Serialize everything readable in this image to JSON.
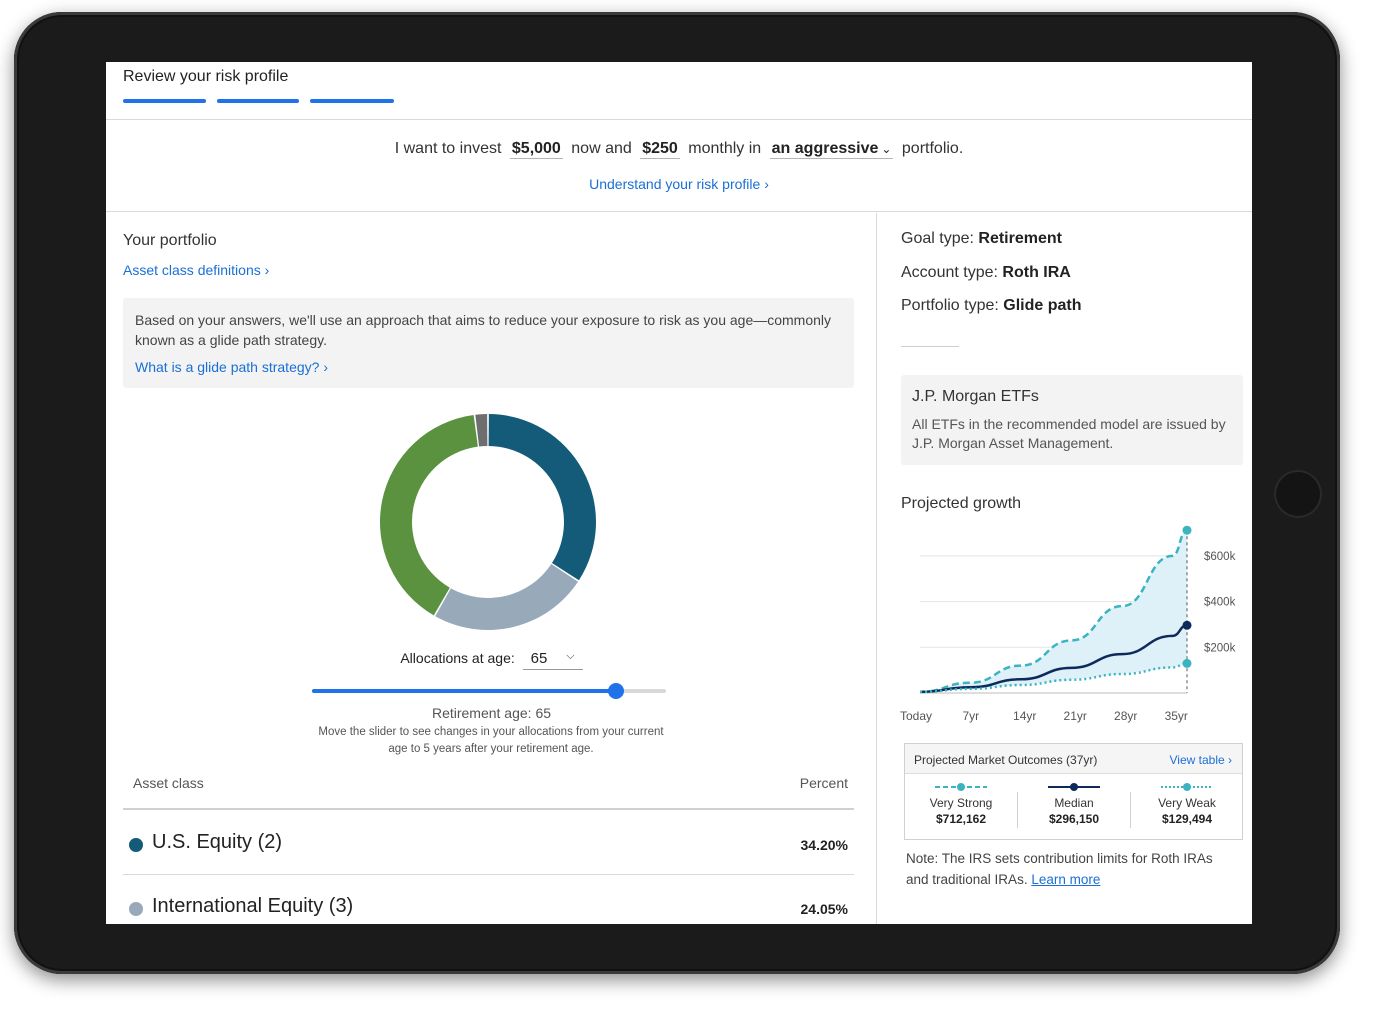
{
  "header": {
    "title": "Review your risk profile",
    "steps_total": 3,
    "steps_complete": 3
  },
  "invest": {
    "prefix": "I want to invest",
    "initial_amount": "$5,000",
    "middle": "now and",
    "monthly_amount": "$250",
    "monthly_label": "monthly in",
    "risk_level": "an aggressive",
    "suffix": "portfolio.",
    "risk_link": "Understand your risk profile ›"
  },
  "portfolio": {
    "title": "Your portfolio",
    "asset_def_link": "Asset class definitions ›",
    "info_text": "Based on your answers, we'll use an approach that aims to reduce your exposure to risk as you age—commonly known as a glide path strategy.",
    "info_link": "What is a glide path strategy? ›",
    "allocation_label": "Allocations at age:",
    "allocation_age": "65",
    "slider_fraction": 0.86,
    "retirement_age_text": "Retirement age: 65",
    "slider_help": "Move the slider to see changes in your allocations from your current age to 5 years after your retirement age.",
    "table": {
      "col_asset": "Asset class",
      "col_percent": "Percent",
      "rows": [
        {
          "name": "U.S. Equity (2)",
          "percent": "34.20%",
          "color": "#135b78"
        },
        {
          "name": "International Equity (3)",
          "percent": "24.05%",
          "color": "#98a9ba"
        }
      ]
    },
    "donut_slices": [
      {
        "label": "U.S. Equity",
        "value": 34.2,
        "color": "#135b78"
      },
      {
        "label": "International Equity",
        "value": 24.05,
        "color": "#98a9ba"
      },
      {
        "label": "Other (green)",
        "value": 39.75,
        "color": "#5a9240"
      },
      {
        "label": "Other (gray)",
        "value": 2.0,
        "color": "#6e6e6e"
      }
    ]
  },
  "goal": {
    "goal_type_label": "Goal type:",
    "goal_type": "Retirement",
    "account_type_label": "Account type:",
    "account_type": "Roth IRA",
    "portfolio_type_label": "Portfolio type:",
    "portfolio_type": "Glide path"
  },
  "etf": {
    "title": "J.P. Morgan ETFs",
    "text": "All ETFs in the recommended model are issued by J.P. Morgan Asset Management."
  },
  "growth": {
    "title": "Projected growth"
  },
  "chart_data": {
    "type": "line",
    "x": [
      0,
      7,
      14,
      21,
      28,
      35,
      37
    ],
    "x_tick_labels": [
      "Today",
      "7yr",
      "14yr",
      "21yr",
      "28yr",
      "35yr"
    ],
    "y_tick_labels": [
      "$200k",
      "$400k",
      "$600k"
    ],
    "ylim": [
      0,
      700000
    ],
    "series": [
      {
        "name": "Very Strong",
        "style": "dashed",
        "color": "#3bb4c1",
        "values": [
          5000,
          45000,
          120000,
          230000,
          380000,
          600000,
          712162
        ]
      },
      {
        "name": "Median",
        "style": "solid",
        "color": "#0e2a5c",
        "values": [
          5000,
          25000,
          60000,
          110000,
          170000,
          250000,
          296150
        ]
      },
      {
        "name": "Very Weak",
        "style": "dotted",
        "color": "#3bb4c1",
        "values": [
          5000,
          18000,
          35000,
          58000,
          83000,
          112000,
          129494
        ]
      }
    ]
  },
  "outcomes": {
    "title": "Projected Market Outcomes (37yr)",
    "view_table": "View table ›",
    "items": [
      {
        "label": "Very Strong",
        "amount": "$712,162"
      },
      {
        "label": "Median",
        "amount": "$296,150"
      },
      {
        "label": "Very Weak",
        "amount": "$129,494"
      }
    ]
  },
  "note": {
    "text": "Note: The IRS sets contribution limits for Roth IRAs and traditional IRAs.",
    "link": "Learn more"
  }
}
